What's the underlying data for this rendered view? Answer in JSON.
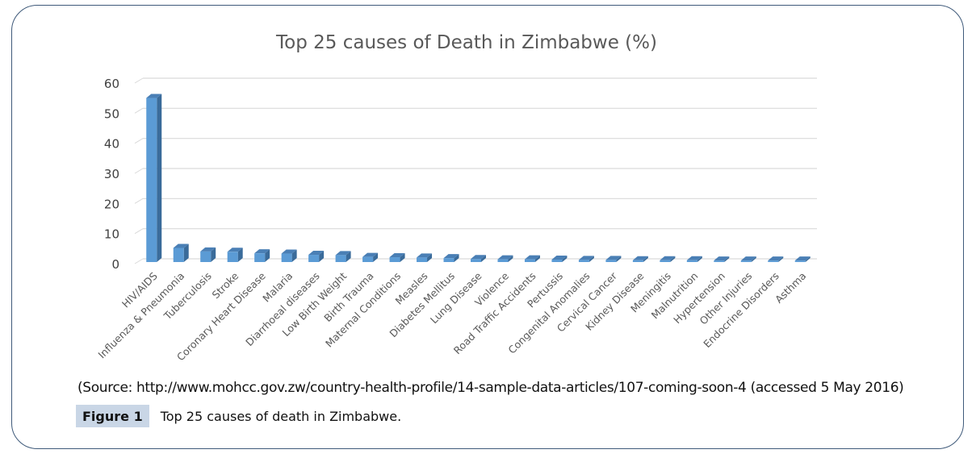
{
  "chart_data": {
    "type": "bar",
    "style": "3d-column",
    "title": "Top 25 causes of Death in Zimbabwe (%)",
    "xlabel": "",
    "ylabel": "",
    "ylim": [
      0,
      60
    ],
    "yticks": [
      0,
      10,
      20,
      30,
      40,
      50,
      60
    ],
    "grid": true,
    "legend": "none",
    "bar_color": "#5b9bd5",
    "categories": [
      "HIV/AIDS",
      "Influenza & Pneumonia",
      "Tuberculosis",
      "Stroke",
      "Coronary Heart Disease",
      "Malaria",
      "Diarrhoeal diseases",
      "Low Birth Weight",
      "Birth Trauma",
      "Maternal Conditions",
      "Measles",
      "Diabetes Mellitus",
      "Lung Disease",
      "Violence",
      "Road Traffic Accidents",
      "Pertussis",
      "Congenital Anomalies",
      "Cervical Cancer",
      "Kidney Disease",
      "Meningitis",
      "Malnutrition",
      "Hypertension",
      "Other Injuries",
      "Endocrine Disorders",
      "Asthma"
    ],
    "values": [
      54.5,
      4.7,
      3.5,
      3.4,
      2.9,
      2.8,
      2.4,
      2.3,
      1.7,
      1.6,
      1.5,
      1.3,
      1.0,
      0.9,
      0.9,
      0.8,
      0.7,
      0.7,
      0.6,
      0.6,
      0.6,
      0.5,
      0.5,
      0.5,
      0.5
    ]
  },
  "source": "(Source: http://www.mohcc.gov.zw/country-health-profile/14-sample-data-articles/107-coming-soon-4 (accessed 5 May 2016)",
  "caption": {
    "label": "Figure 1",
    "text": "Top 25 causes of death in Zimbabwe."
  }
}
